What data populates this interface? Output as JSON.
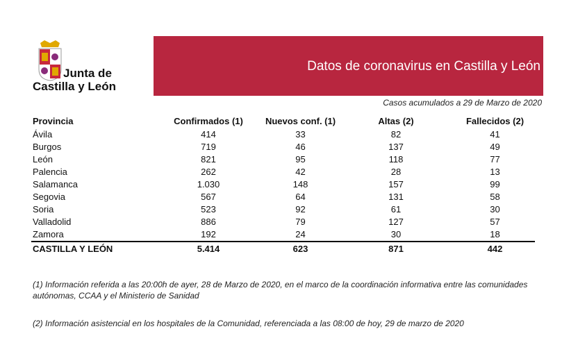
{
  "logo": {
    "line1": "Junta de",
    "line2": "Castilla y León"
  },
  "banner": {
    "title": "Datos de coronavirus en Castilla y León"
  },
  "subtitle": "Casos acumulados a 29 de Marzo de 2020",
  "table": {
    "columns": [
      "Provincia",
      "Confirmados (1)",
      "Nuevos conf. (1)",
      "Altas (2)",
      "Fallecidos (2)"
    ],
    "rows": [
      [
        "Ávila",
        "414",
        "33",
        "82",
        "41"
      ],
      [
        "Burgos",
        "719",
        "46",
        "137",
        "49"
      ],
      [
        "León",
        "821",
        "95",
        "118",
        "77"
      ],
      [
        "Palencia",
        "262",
        "42",
        "28",
        "13"
      ],
      [
        "Salamanca",
        "1.030",
        "148",
        "157",
        "99"
      ],
      [
        "Segovia",
        "567",
        "64",
        "131",
        "58"
      ],
      [
        "Soria",
        "523",
        "92",
        "61",
        "30"
      ],
      [
        "Valladolid",
        "886",
        "79",
        "127",
        "57"
      ],
      [
        "Zamora",
        "192",
        "24",
        "30",
        "18"
      ]
    ],
    "total": [
      "CASTILLA Y LEÓN",
      "5.414",
      "623",
      "871",
      "442"
    ]
  },
  "notes": [
    "(1) Información referida a las 20:00h de ayer, 28 de Marzo de 2020, en el marco de la coordinación informativa entre las comunidades autónomas, CCAA y el Ministerio de Sanidad",
    "(2) Información asistencial en los hospitales de la Comunidad, referenciada a las 08:00 de hoy, 29 de marzo de 2020"
  ]
}
